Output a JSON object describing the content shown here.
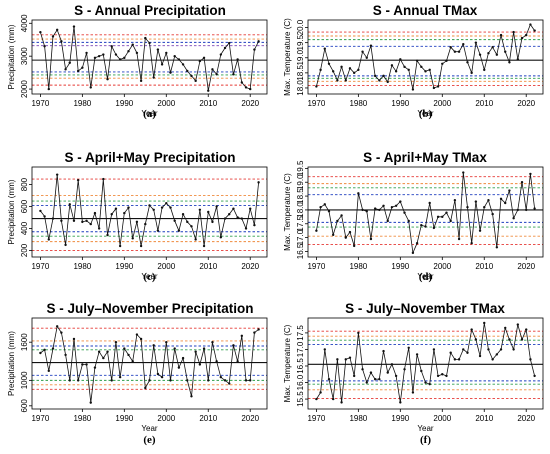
{
  "chart_data": [
    {
      "panel_label": "(a)",
      "title_bold": "S",
      "title_rest": " - Annual Precipitation",
      "type": "line",
      "xlabel": "Year",
      "ylabel": "Precipitation (mm)",
      "xlim": [
        1968,
        2024
      ],
      "ylim": [
        1850,
        4100
      ],
      "x_ticks": [
        1970,
        1980,
        1990,
        2000,
        2010,
        2020
      ],
      "y_ticks": [
        2000,
        3000,
        4000
      ],
      "grid": false,
      "reference_lines": [
        {
          "value": 3650,
          "color": "#e53935"
        },
        {
          "value": 3520,
          "color": "#ef8a3c"
        },
        {
          "value": 3420,
          "color": "#1f3fbf"
        },
        {
          "value": 3320,
          "color": "#7a44b5"
        },
        {
          "value": 2880,
          "color": "#111111"
        },
        {
          "value": 2520,
          "color": "#1f3fbf"
        },
        {
          "value": 2430,
          "color": "#2e9e4a"
        },
        {
          "value": 2330,
          "color": "#ef8a3c"
        },
        {
          "value": 2120,
          "color": "#e53935"
        }
      ],
      "x": [
        1970,
        1971,
        1972,
        1973,
        1974,
        1975,
        1976,
        1977,
        1978,
        1979,
        1980,
        1981,
        1982,
        1983,
        1984,
        1985,
        1986,
        1987,
        1988,
        1989,
        1990,
        1991,
        1992,
        1993,
        1994,
        1995,
        1996,
        1997,
        1998,
        1999,
        2000,
        2001,
        2002,
        2003,
        2004,
        2005,
        2006,
        2007,
        2008,
        2009,
        2010,
        2011,
        2012,
        2013,
        2014,
        2015,
        2016,
        2017,
        2018,
        2019,
        2020,
        2021,
        2022
      ],
      "values": [
        3730,
        3300,
        2000,
        3600,
        3800,
        3450,
        2600,
        2800,
        3900,
        2550,
        2650,
        3100,
        2050,
        2950,
        3000,
        3050,
        2300,
        3300,
        3050,
        2900,
        2950,
        3150,
        3350,
        3100,
        2250,
        3550,
        3400,
        2350,
        3200,
        2750,
        3100,
        2500,
        3000,
        2900,
        2750,
        2550,
        2400,
        2250,
        2850,
        2950,
        1950,
        2600,
        2450,
        3050,
        3250,
        3400,
        2450,
        2900,
        2200,
        2050,
        2000,
        3200,
        3450
      ]
    },
    {
      "panel_label": "(b)",
      "title_bold": "S",
      "title_rest": " - Annual TMax",
      "type": "line",
      "xlabel": "Year",
      "ylabel": "Max. Temperature (C)",
      "xlim": [
        1968,
        2024
      ],
      "ylim": [
        17.8,
        20.25
      ],
      "x_ticks": [
        1970,
        1980,
        1990,
        2000,
        2010,
        2020
      ],
      "y_ticks": [
        18.0,
        18.5,
        19.0,
        19.5,
        20.0
      ],
      "grid": false,
      "reference_lines": [
        {
          "value": 19.85,
          "color": "#e53935"
        },
        {
          "value": 19.72,
          "color": "#ef8a3c"
        },
        {
          "value": 19.6,
          "color": "#2e9e4a"
        },
        {
          "value": 19.38,
          "color": "#1f3fbf"
        },
        {
          "value": 18.92,
          "color": "#111111"
        },
        {
          "value": 18.4,
          "color": "#1f3fbf"
        },
        {
          "value": 18.32,
          "color": "#2e9e4a"
        },
        {
          "value": 18.22,
          "color": "#ef8a3c"
        },
        {
          "value": 18.08,
          "color": "#e53935"
        }
      ],
      "x": [
        1970,
        1971,
        1972,
        1973,
        1974,
        1975,
        1976,
        1977,
        1978,
        1979,
        1980,
        1981,
        1982,
        1983,
        1984,
        1985,
        1986,
        1987,
        1988,
        1989,
        1990,
        1991,
        1992,
        1993,
        1994,
        1995,
        1996,
        1997,
        1998,
        1999,
        2000,
        2001,
        2002,
        2003,
        2004,
        2005,
        2006,
        2007,
        2008,
        2009,
        2010,
        2011,
        2012,
        2013,
        2014,
        2015,
        2016,
        2017,
        2018,
        2019,
        2020,
        2021,
        2022
      ],
      "values": [
        18.05,
        18.6,
        19.3,
        18.8,
        18.55,
        18.25,
        18.7,
        18.25,
        18.65,
        18.5,
        18.6,
        19.2,
        19.0,
        19.4,
        18.4,
        18.25,
        18.4,
        18.2,
        18.75,
        18.55,
        18.95,
        18.7,
        18.6,
        17.95,
        18.9,
        18.7,
        18.55,
        18.6,
        18.0,
        18.05,
        18.8,
        18.9,
        19.35,
        19.2,
        19.2,
        19.45,
        18.85,
        18.5,
        19.5,
        19.1,
        18.6,
        19.15,
        19.35,
        19.1,
        19.75,
        19.2,
        18.85,
        19.85,
        18.95,
        19.65,
        19.75,
        20.1,
        19.9
      ]
    },
    {
      "panel_label": "(c)",
      "title_bold": "S",
      "title_rest": " - April+May Precipitation",
      "type": "line",
      "xlabel": "Year",
      "ylabel": "Precipitation (mm)",
      "xlim": [
        1968,
        2024
      ],
      "ylim": [
        140,
        960
      ],
      "x_ticks": [
        1970,
        1980,
        1990,
        2000,
        2010,
        2020
      ],
      "y_ticks": [
        200,
        400,
        600,
        800
      ],
      "grid": false,
      "reference_lines": [
        {
          "value": 850,
          "color": "#e53935"
        },
        {
          "value": 700,
          "color": "#ef8a3c"
        },
        {
          "value": 650,
          "color": "#2e9e4a"
        },
        {
          "value": 610,
          "color": "#1f3fbf"
        },
        {
          "value": 490,
          "color": "#111111"
        },
        {
          "value": 370,
          "color": "#1f3fbf"
        },
        {
          "value": 330,
          "color": "#2e9e4a"
        },
        {
          "value": 280,
          "color": "#ef8a3c"
        },
        {
          "value": 200,
          "color": "#e53935"
        }
      ],
      "x": [
        1970,
        1971,
        1972,
        1973,
        1974,
        1975,
        1976,
        1977,
        1978,
        1979,
        1980,
        1981,
        1982,
        1983,
        1984,
        1985,
        1986,
        1987,
        1988,
        1989,
        1990,
        1991,
        1992,
        1993,
        1994,
        1995,
        1996,
        1997,
        1998,
        1999,
        2000,
        2001,
        2002,
        2003,
        2004,
        2005,
        2006,
        2007,
        2008,
        2009,
        2010,
        2011,
        2012,
        2013,
        2014,
        2015,
        2016,
        2017,
        2018,
        2019,
        2020,
        2021,
        2022
      ],
      "values": [
        560,
        510,
        300,
        490,
        890,
        470,
        250,
        620,
        470,
        840,
        460,
        470,
        440,
        540,
        400,
        850,
        340,
        530,
        580,
        240,
        540,
        590,
        310,
        460,
        240,
        440,
        610,
        570,
        380,
        590,
        630,
        590,
        470,
        380,
        530,
        460,
        420,
        300,
        570,
        240,
        550,
        460,
        600,
        320,
        490,
        530,
        580,
        500,
        490,
        400,
        580,
        430,
        820
      ]
    },
    {
      "panel_label": "(d)",
      "title_bold": "S",
      "title_rest": " - April+May TMax",
      "type": "line",
      "xlabel": "Year",
      "ylabel": "Max. Temperature (C)",
      "xlim": [
        1968,
        2024
      ],
      "ylim": [
        16.3,
        19.55
      ],
      "x_ticks": [
        1970,
        1980,
        1990,
        2000,
        2010,
        2020
      ],
      "y_ticks": [
        16.5,
        17.0,
        17.5,
        18.0,
        18.5,
        19.0,
        19.5
      ],
      "grid": false,
      "reference_lines": [
        {
          "value": 19.2,
          "color": "#e53935"
        },
        {
          "value": 18.95,
          "color": "#ef8a3c"
        },
        {
          "value": 18.8,
          "color": "#2e9e4a"
        },
        {
          "value": 18.55,
          "color": "#1f3fbf"
        },
        {
          "value": 18.0,
          "color": "#111111"
        },
        {
          "value": 17.55,
          "color": "#1f3fbf"
        },
        {
          "value": 17.38,
          "color": "#2e9e4a"
        },
        {
          "value": 17.05,
          "color": "#ef8a3c"
        },
        {
          "value": 16.75,
          "color": "#e53935"
        }
      ],
      "x": [
        1970,
        1971,
        1972,
        1973,
        1974,
        1975,
        1976,
        1977,
        1978,
        1979,
        1980,
        1981,
        1982,
        1983,
        1984,
        1985,
        1986,
        1987,
        1988,
        1989,
        1990,
        1991,
        1992,
        1993,
        1994,
        1995,
        1996,
        1997,
        1998,
        1999,
        2000,
        2001,
        2002,
        2003,
        2004,
        2005,
        2006,
        2007,
        2008,
        2009,
        2010,
        2011,
        2012,
        2013,
        2014,
        2015,
        2016,
        2017,
        2018,
        2019,
        2020,
        2021,
        2022
      ],
      "values": [
        17.25,
        18.1,
        18.2,
        17.95,
        17.1,
        17.6,
        17.8,
        17.0,
        17.2,
        16.7,
        18.6,
        18.0,
        17.95,
        16.95,
        18.05,
        18.0,
        18.15,
        17.6,
        18.1,
        18.15,
        18.3,
        17.9,
        17.6,
        16.45,
        16.8,
        17.45,
        17.4,
        18.25,
        17.35,
        17.75,
        17.75,
        17.9,
        17.6,
        18.35,
        16.95,
        19.35,
        18.1,
        16.8,
        18.3,
        17.25,
        18.1,
        18.35,
        17.85,
        16.65,
        18.4,
        18.25,
        18.7,
        17.7,
        18.0,
        19.0,
        18.0,
        19.3,
        18.05
      ]
    },
    {
      "panel_label": "(e)",
      "title_bold": "S",
      "title_rest": " - July–November Precipitation",
      "type": "line",
      "xlabel": "Year",
      "ylabel": "Precipitation (mm)",
      "xlim": [
        1968,
        2024
      ],
      "ylim": [
        550,
        1980
      ],
      "x_ticks": [
        1970,
        1980,
        1990,
        2000,
        2010,
        2020
      ],
      "y_ticks": [
        600,
        1000,
        1600
      ],
      "grid": false,
      "reference_lines": [
        {
          "value": 1820,
          "color": "#e53935"
        },
        {
          "value": 1620,
          "color": "#ef8a3c"
        },
        {
          "value": 1540,
          "color": "#1f3fbf"
        },
        {
          "value": 1480,
          "color": "#2e9e4a"
        },
        {
          "value": 1280,
          "color": "#111111"
        },
        {
          "value": 1080,
          "color": "#1f3fbf"
        },
        {
          "value": 1000,
          "color": "#2e9e4a"
        },
        {
          "value": 930,
          "color": "#ef8a3c"
        },
        {
          "value": 860,
          "color": "#e53935"
        }
      ],
      "x": [
        1970,
        1971,
        1972,
        1973,
        1974,
        1975,
        1976,
        1977,
        1978,
        1979,
        1980,
        1981,
        1982,
        1983,
        1984,
        1985,
        1986,
        1987,
        1988,
        1989,
        1990,
        1991,
        1992,
        1993,
        1994,
        1995,
        1996,
        1997,
        1998,
        1999,
        2000,
        2001,
        2002,
        2003,
        2004,
        2005,
        2006,
        2007,
        2008,
        2009,
        2010,
        2011,
        2012,
        2013,
        2014,
        2015,
        2016,
        2017,
        2018,
        2019,
        2020,
        2021,
        2022
      ],
      "values": [
        1430,
        1480,
        1150,
        1500,
        1850,
        1750,
        1400,
        1000,
        1650,
        1000,
        1250,
        1250,
        650,
        1200,
        1450,
        1350,
        1450,
        1000,
        1600,
        1050,
        1500,
        1400,
        1300,
        1720,
        1650,
        880,
        1000,
        1550,
        1100,
        1050,
        1600,
        1000,
        1500,
        1200,
        1350,
        1000,
        750,
        1450,
        1250,
        1500,
        1000,
        1600,
        1300,
        1050,
        1000,
        950,
        1550,
        1300,
        1700,
        1000,
        1000,
        1750,
        1800
      ]
    },
    {
      "panel_label": "(f)",
      "title_bold": "S",
      "title_rest": " - July–November TMax",
      "type": "line",
      "xlabel": "Year",
      "ylabel": "Max. Temperature (C)",
      "xlim": [
        1968,
        2024
      ],
      "ylim": [
        15.2,
        17.95
      ],
      "x_ticks": [
        1970,
        1980,
        1990,
        2000,
        2010,
        2020
      ],
      "y_ticks": [
        15.5,
        16.0,
        16.5,
        17.0,
        17.5
      ],
      "grid": false,
      "reference_lines": [
        {
          "value": 17.55,
          "color": "#e53935"
        },
        {
          "value": 17.4,
          "color": "#ef8a3c"
        },
        {
          "value": 17.28,
          "color": "#2e9e4a"
        },
        {
          "value": 17.15,
          "color": "#1f3fbf"
        },
        {
          "value": 16.55,
          "color": "#111111"
        },
        {
          "value": 16.05,
          "color": "#1f3fbf"
        },
        {
          "value": 15.95,
          "color": "#2e9e4a"
        },
        {
          "value": 15.78,
          "color": "#ef8a3c"
        },
        {
          "value": 15.52,
          "color": "#e53935"
        }
      ],
      "x": [
        1970,
        1971,
        1972,
        1973,
        1974,
        1975,
        1976,
        1977,
        1978,
        1979,
        1980,
        1981,
        1982,
        1983,
        1984,
        1985,
        1986,
        1987,
        1988,
        1989,
        1990,
        1991,
        1992,
        1993,
        1994,
        1995,
        1996,
        1997,
        1998,
        1999,
        2000,
        2001,
        2002,
        2003,
        2004,
        2005,
        2006,
        2007,
        2008,
        2009,
        2010,
        2011,
        2012,
        2013,
        2014,
        2015,
        2016,
        2017,
        2018,
        2019,
        2020,
        2021,
        2022
      ],
      "values": [
        15.5,
        15.7,
        17.0,
        16.1,
        15.5,
        16.7,
        15.4,
        16.7,
        16.75,
        16.2,
        17.5,
        16.4,
        16.0,
        16.3,
        16.1,
        16.1,
        16.95,
        16.3,
        16.55,
        16.2,
        15.4,
        16.4,
        17.05,
        15.7,
        16.85,
        16.35,
        16.0,
        15.95,
        17.0,
        16.2,
        16.25,
        16.2,
        16.9,
        16.7,
        16.7,
        17.0,
        16.9,
        17.6,
        17.3,
        16.8,
        17.8,
        17.0,
        16.7,
        16.85,
        17.0,
        17.65,
        17.3,
        17.0,
        17.75,
        17.3,
        17.6,
        16.7,
        16.2
      ]
    }
  ]
}
